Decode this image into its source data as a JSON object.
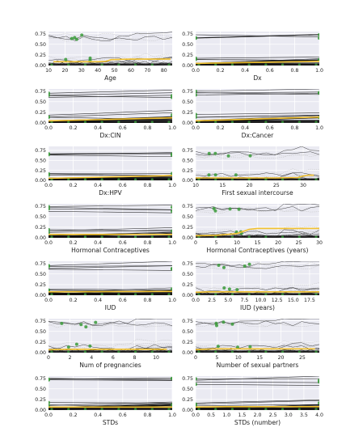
{
  "colors": {
    "panel_bg": "#eaeaf2",
    "grid": "#ffffff",
    "ice_line": "#111111",
    "ice_light": "#bbbbbb",
    "average_line": "#f2c12e",
    "marker": "#3a9a3a"
  },
  "chart_data": [
    {
      "type": "line",
      "xlabel": "Age",
      "xlim": [
        10,
        85
      ],
      "ylim": [
        0,
        0.8
      ],
      "xticks": [
        "10",
        "20",
        "30",
        "40",
        "50",
        "60",
        "70",
        "80"
      ],
      "xtick_values": [
        10,
        20,
        30,
        40,
        50,
        60,
        70,
        80
      ],
      "yticks": [
        "0.00",
        "0.25",
        "0.50",
        "0.75"
      ],
      "ytick_values": [
        0,
        0.25,
        0.5,
        0.75
      ],
      "average_curve": {
        "x": [
          13,
          20,
          30,
          40,
          45,
          48,
          60,
          70,
          84
        ],
        "y": [
          0.09,
          0.09,
          0.09,
          0.09,
          0.1,
          0.14,
          0.15,
          0.15,
          0.15
        ]
      },
      "continuous": true
    },
    {
      "type": "line",
      "xlabel": "Dx",
      "xlim": [
        0,
        1
      ],
      "ylim": [
        0,
        0.8
      ],
      "xticks": [
        "0.0",
        "0.2",
        "0.4",
        "0.6",
        "0.8",
        "1.0"
      ],
      "xtick_values": [
        0,
        0.2,
        0.4,
        0.6,
        0.8,
        1.0
      ],
      "yticks": [
        "0.00",
        "0.25",
        "0.50",
        "0.75"
      ],
      "ytick_values": [
        0,
        0.25,
        0.5,
        0.75
      ],
      "average_curve": {
        "x": [
          0,
          1
        ],
        "y": [
          0.05,
          0.1
        ]
      },
      "continuous": false
    },
    {
      "type": "line",
      "xlabel": "Dx:CIN",
      "xlim": [
        0,
        1
      ],
      "ylim": [
        0,
        0.8
      ],
      "xticks": [
        "0.0",
        "0.2",
        "0.4",
        "0.6",
        "0.8",
        "1.0"
      ],
      "xtick_values": [
        0,
        0.2,
        0.4,
        0.6,
        0.8,
        1.0
      ],
      "yticks": [
        "0.00",
        "0.25",
        "0.50",
        "0.75"
      ],
      "ytick_values": [
        0,
        0.25,
        0.5,
        0.75
      ],
      "average_curve": {
        "x": [
          0,
          1
        ],
        "y": [
          0.05,
          0.12
        ]
      },
      "continuous": false
    },
    {
      "type": "line",
      "xlabel": "Dx:Cancer",
      "xlim": [
        0,
        1
      ],
      "ylim": [
        0,
        0.8
      ],
      "xticks": [
        "0.0",
        "0.2",
        "0.4",
        "0.6",
        "0.8",
        "1.0"
      ],
      "xtick_values": [
        0,
        0.2,
        0.4,
        0.6,
        0.8,
        1.0
      ],
      "yticks": [
        "0.00",
        "0.25",
        "0.50",
        "0.75"
      ],
      "ytick_values": [
        0,
        0.25,
        0.5,
        0.75
      ],
      "average_curve": {
        "x": [
          0,
          1
        ],
        "y": [
          0.05,
          0.14
        ]
      },
      "continuous": false
    },
    {
      "type": "line",
      "xlabel": "Dx:HPV",
      "xlim": [
        0,
        1
      ],
      "ylim": [
        0,
        0.85
      ],
      "xticks": [
        "0.0",
        "0.2",
        "0.4",
        "0.6",
        "0.8",
        "1.0"
      ],
      "xtick_values": [
        0,
        0.2,
        0.4,
        0.6,
        0.8,
        1.0
      ],
      "yticks": [
        "0.00",
        "0.25",
        "0.50",
        "0.75"
      ],
      "ytick_values": [
        0,
        0.25,
        0.5,
        0.75
      ],
      "average_curve": {
        "x": [
          0,
          1
        ],
        "y": [
          0.05,
          0.12
        ]
      },
      "continuous": false
    },
    {
      "type": "line",
      "xlabel": "First sexual intercourse",
      "xlim": [
        10,
        33
      ],
      "ylim": [
        0,
        0.85
      ],
      "xticks": [
        "10",
        "15",
        "20",
        "25",
        "30"
      ],
      "xtick_values": [
        10,
        15,
        20,
        25,
        30
      ],
      "yticks": [
        "0.00",
        "0.25",
        "0.50",
        "0.75"
      ],
      "ytick_values": [
        0,
        0.25,
        0.5,
        0.75
      ],
      "average_curve": {
        "x": [
          10,
          15,
          20,
          25,
          29,
          30,
          31,
          32
        ],
        "y": [
          0.06,
          0.06,
          0.06,
          0.06,
          0.07,
          0.11,
          0.13,
          0.13
        ]
      },
      "continuous": true
    },
    {
      "type": "line",
      "xlabel": "Hormonal Contraceptives",
      "xlim": [
        0,
        1
      ],
      "ylim": [
        0,
        0.8
      ],
      "xticks": [
        "0.0",
        "0.2",
        "0.4",
        "0.6",
        "0.8",
        "1.0"
      ],
      "xtick_values": [
        0,
        0.2,
        0.4,
        0.6,
        0.8,
        1.0
      ],
      "yticks": [
        "0.00",
        "0.25",
        "0.50",
        "0.75"
      ],
      "ytick_values": [
        0,
        0.25,
        0.5,
        0.75
      ],
      "average_curve": {
        "x": [
          0,
          1
        ],
        "y": [
          0.08,
          0.08
        ]
      },
      "continuous": false
    },
    {
      "type": "line",
      "xlabel": "Hormonal Contraceptives (years)",
      "xlim": [
        0,
        30
      ],
      "ylim": [
        0,
        0.8
      ],
      "xticks": [
        "0",
        "5",
        "10",
        "15",
        "20",
        "25",
        "30"
      ],
      "xtick_values": [
        0,
        5,
        10,
        15,
        20,
        25,
        30
      ],
      "yticks": [
        "0.00",
        "0.25",
        "0.50",
        "0.75"
      ],
      "ytick_values": [
        0,
        0.25,
        0.5,
        0.75
      ],
      "average_curve": {
        "x": [
          0,
          5,
          10,
          13,
          15,
          20,
          25,
          30
        ],
        "y": [
          0.05,
          0.06,
          0.1,
          0.2,
          0.22,
          0.22,
          0.22,
          0.22
        ]
      },
      "continuous": true
    },
    {
      "type": "line",
      "xlabel": "IUD",
      "xlim": [
        0,
        1
      ],
      "ylim": [
        0,
        0.8
      ],
      "xticks": [
        "0.0",
        "0.2",
        "0.4",
        "0.6",
        "0.8",
        "1.0"
      ],
      "xtick_values": [
        0,
        0.2,
        0.4,
        0.6,
        0.8,
        1.0
      ],
      "yticks": [
        "0.00",
        "0.25",
        "0.50",
        "0.75"
      ],
      "ytick_values": [
        0,
        0.25,
        0.5,
        0.75
      ],
      "average_curve": {
        "x": [
          0,
          1
        ],
        "y": [
          0.08,
          0.09
        ]
      },
      "continuous": false
    },
    {
      "type": "line",
      "xlabel": "IUD (years)",
      "xlim": [
        0,
        19
      ],
      "ylim": [
        0,
        0.8
      ],
      "xticks": [
        "0.0",
        "2.5",
        "5.0",
        "7.5",
        "10.0",
        "12.5",
        "15.0",
        "17.5"
      ],
      "xtick_values": [
        0,
        2.5,
        5,
        7.5,
        10,
        12.5,
        15,
        17.5
      ],
      "yticks": [
        "0.00",
        "0.25",
        "0.50",
        "0.75"
      ],
      "ytick_values": [
        0,
        0.25,
        0.5,
        0.75
      ],
      "average_curve": {
        "x": [
          0,
          2,
          5,
          10,
          15,
          19
        ],
        "y": [
          0.07,
          0.08,
          0.08,
          0.08,
          0.08,
          0.08
        ]
      },
      "continuous": true
    },
    {
      "type": "line",
      "xlabel": "Num of pregnancies",
      "xlim": [
        0,
        11.5
      ],
      "ylim": [
        0,
        0.8
      ],
      "xticks": [
        "0",
        "2",
        "4",
        "6",
        "8",
        "10"
      ],
      "xtick_values": [
        0,
        2,
        4,
        6,
        8,
        10
      ],
      "yticks": [
        "0.00",
        "0.25",
        "0.50",
        "0.75"
      ],
      "ytick_values": [
        0,
        0.25,
        0.5,
        0.75
      ],
      "average_curve": {
        "x": [
          0,
          2,
          4,
          6,
          8,
          10,
          11
        ],
        "y": [
          0.07,
          0.08,
          0.08,
          0.08,
          0.08,
          0.08,
          0.08
        ]
      },
      "continuous": true
    },
    {
      "type": "line",
      "xlabel": "Number of sexual partners",
      "xlim": [
        0,
        29
      ],
      "ylim": [
        0,
        0.8
      ],
      "xticks": [
        "0",
        "5",
        "10",
        "15",
        "20",
        "25"
      ],
      "xtick_values": [
        0,
        5,
        10,
        15,
        20,
        25
      ],
      "yticks": [
        "0.00",
        "0.25",
        "0.50",
        "0.75"
      ],
      "ytick_values": [
        0,
        0.25,
        0.5,
        0.75
      ],
      "average_curve": {
        "x": [
          0,
          2,
          5,
          10,
          20,
          28
        ],
        "y": [
          0.07,
          0.08,
          0.09,
          0.09,
          0.09,
          0.09
        ]
      },
      "continuous": true
    },
    {
      "type": "line",
      "xlabel": "STDs",
      "xlim": [
        0,
        1
      ],
      "ylim": [
        0,
        0.8
      ],
      "xticks": [
        "0.0",
        "0.2",
        "0.4",
        "0.6",
        "0.8",
        "1.0"
      ],
      "xtick_values": [
        0,
        0.2,
        0.4,
        0.6,
        0.8,
        1.0
      ],
      "yticks": [
        "0.00",
        "0.25",
        "0.50",
        "0.75"
      ],
      "ytick_values": [
        0,
        0.25,
        0.5,
        0.75
      ],
      "average_curve": {
        "x": [
          0,
          1
        ],
        "y": [
          0.07,
          0.07
        ]
      },
      "continuous": false
    },
    {
      "type": "line",
      "xlabel": "STDs (number)",
      "xlim": [
        0,
        4
      ],
      "ylim": [
        0,
        0.8
      ],
      "xticks": [
        "0.0",
        "0.5",
        "1.0",
        "1.5",
        "2.0",
        "2.5",
        "3.0",
        "3.5",
        "4.0"
      ],
      "xtick_values": [
        0,
        0.5,
        1,
        1.5,
        2,
        2.5,
        3,
        3.5,
        4
      ],
      "yticks": [
        "0.00",
        "0.25",
        "0.50",
        "0.75"
      ],
      "ytick_values": [
        0,
        0.25,
        0.5,
        0.75
      ],
      "average_curve": {
        "x": [
          0,
          1,
          2,
          3,
          4
        ],
        "y": [
          0.07,
          0.08,
          0.08,
          0.08,
          0.08
        ]
      },
      "continuous": false
    }
  ]
}
